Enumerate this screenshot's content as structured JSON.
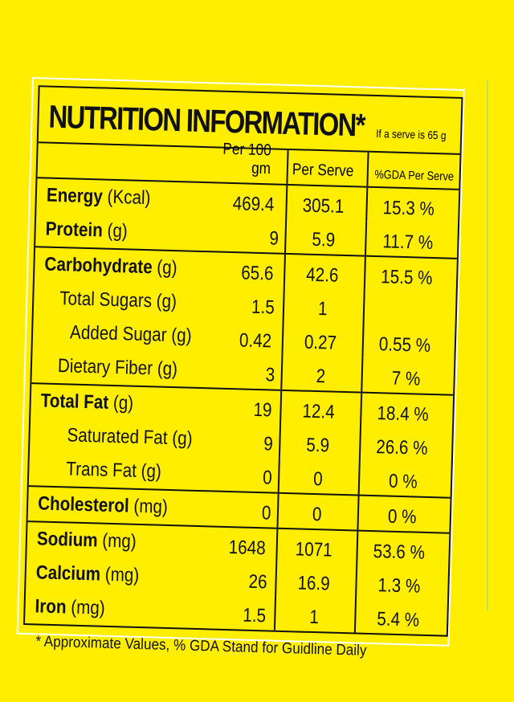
{
  "title": "NUTRITION INFORMATION*",
  "serve_note": "If a serve is 65 g",
  "headers": {
    "per100": "Per 100 gm",
    "perServe": "Per Serve",
    "gda": "%GDA Per Serve"
  },
  "groups": [
    {
      "rows": [
        {
          "name": "Energy",
          "unit": " (Kcal)",
          "bold": true,
          "per100": "469.4",
          "perServe": "305.1",
          "gda": "15.3 %"
        },
        {
          "name": "Protein",
          "unit": " (g)",
          "bold": true,
          "per100": "9",
          "perServe": "5.9",
          "gda": "11.7 %"
        }
      ]
    },
    {
      "rows": [
        {
          "name": "Carbohydrate",
          "unit": " (g)",
          "bold": true,
          "per100": "65.6",
          "perServe": "42.6",
          "gda": "15.5 %"
        },
        {
          "name": "Total Sugars (g)",
          "unit": "",
          "bold": false,
          "indent": 1,
          "per100": "1.5",
          "perServe": "1",
          "gda": ""
        },
        {
          "name": "Added Sugar (g)",
          "unit": "",
          "bold": false,
          "indent": 2,
          "per100": "0.42",
          "perServe": "0.27",
          "gda": "0.55 %"
        },
        {
          "name": "Dietary Fiber (g)",
          "unit": "",
          "bold": false,
          "indent": 1,
          "per100": "3",
          "perServe": "2",
          "gda": "7 %"
        }
      ]
    },
    {
      "rows": [
        {
          "name": "Total Fat",
          "unit": " (g)",
          "bold": true,
          "per100": "19",
          "perServe": "12.4",
          "gda": "18.4 %"
        },
        {
          "name": "Saturated Fat (g)",
          "unit": "",
          "bold": false,
          "indent": 2,
          "per100": "9",
          "perServe": "5.9",
          "gda": "26.6 %"
        },
        {
          "name": "Trans Fat (g)",
          "unit": "",
          "bold": false,
          "indent": 2,
          "per100": "0",
          "perServe": "0",
          "gda": "0 %"
        }
      ]
    },
    {
      "rows": [
        {
          "name": "Cholesterol",
          "unit": " (mg)",
          "bold": true,
          "per100": "0",
          "perServe": "0",
          "gda": "0 %"
        }
      ]
    },
    {
      "rows": [
        {
          "name": "Sodium",
          "unit": " (mg)",
          "bold": true,
          "per100": "1648",
          "perServe": "1071",
          "gda": "53.6 %"
        },
        {
          "name": "Calcium",
          "unit": " (mg)",
          "bold": true,
          "per100": "26",
          "perServe": "16.9",
          "gda": "1.3 %"
        },
        {
          "name": "Iron",
          "unit": " (mg)",
          "bold": true,
          "per100": "1.5",
          "perServe": "1",
          "gda": "5.4 %"
        }
      ]
    }
  ],
  "footer": "* Approximate Values, % GDA Stand for Guidline Daily"
}
